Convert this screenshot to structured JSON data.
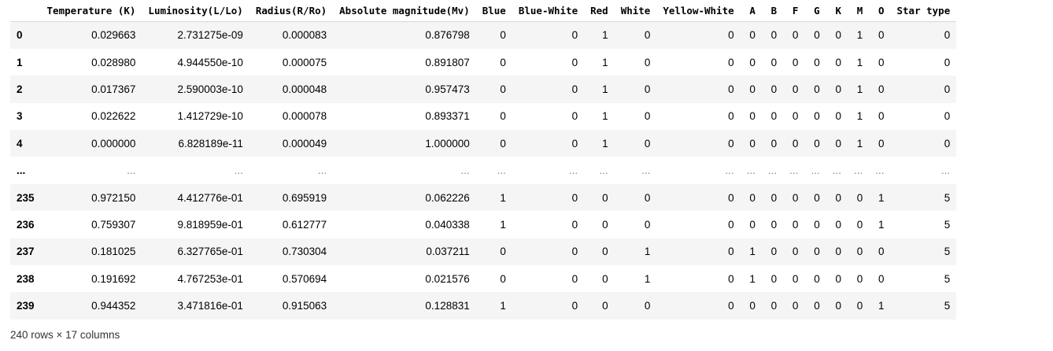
{
  "dataframe": {
    "columns": [
      "",
      "Temperature (K)",
      "Luminosity(L/Lo)",
      "Radius(R/Ro)",
      "Absolute magnitude(Mv)",
      "Blue",
      "Blue-White",
      "Red",
      "White",
      "Yellow-White",
      "A",
      "B",
      "F",
      "G",
      "K",
      "M",
      "O",
      "Star type"
    ],
    "rows": [
      [
        "0",
        "0.029663",
        "2.731275e-09",
        "0.000083",
        "0.876798",
        "0",
        "0",
        "1",
        "0",
        "0",
        "0",
        "0",
        "0",
        "0",
        "0",
        "1",
        "0",
        "0"
      ],
      [
        "1",
        "0.028980",
        "4.944550e-10",
        "0.000075",
        "0.891807",
        "0",
        "0",
        "1",
        "0",
        "0",
        "0",
        "0",
        "0",
        "0",
        "0",
        "1",
        "0",
        "0"
      ],
      [
        "2",
        "0.017367",
        "2.590003e-10",
        "0.000048",
        "0.957473",
        "0",
        "0",
        "1",
        "0",
        "0",
        "0",
        "0",
        "0",
        "0",
        "0",
        "1",
        "0",
        "0"
      ],
      [
        "3",
        "0.022622",
        "1.412729e-10",
        "0.000078",
        "0.893371",
        "0",
        "0",
        "1",
        "0",
        "0",
        "0",
        "0",
        "0",
        "0",
        "0",
        "1",
        "0",
        "0"
      ],
      [
        "4",
        "0.000000",
        "6.828189e-11",
        "0.000049",
        "1.000000",
        "0",
        "0",
        "1",
        "0",
        "0",
        "0",
        "0",
        "0",
        "0",
        "0",
        "1",
        "0",
        "0"
      ],
      [
        "...",
        "...",
        "...",
        "...",
        "...",
        "...",
        "...",
        "...",
        "...",
        "...",
        "...",
        "...",
        "...",
        "...",
        "...",
        "...",
        "...",
        "..."
      ],
      [
        "235",
        "0.972150",
        "4.412776e-01",
        "0.695919",
        "0.062226",
        "1",
        "0",
        "0",
        "0",
        "0",
        "0",
        "0",
        "0",
        "0",
        "0",
        "0",
        "1",
        "5"
      ],
      [
        "236",
        "0.759307",
        "9.818959e-01",
        "0.612777",
        "0.040338",
        "1",
        "0",
        "0",
        "0",
        "0",
        "0",
        "0",
        "0",
        "0",
        "0",
        "0",
        "1",
        "5"
      ],
      [
        "237",
        "0.181025",
        "6.327765e-01",
        "0.730304",
        "0.037211",
        "0",
        "0",
        "0",
        "1",
        "0",
        "1",
        "0",
        "0",
        "0",
        "0",
        "0",
        "0",
        "5"
      ],
      [
        "238",
        "0.191692",
        "4.767253e-01",
        "0.570694",
        "0.021576",
        "0",
        "0",
        "0",
        "1",
        "0",
        "1",
        "0",
        "0",
        "0",
        "0",
        "0",
        "0",
        "5"
      ],
      [
        "239",
        "0.944352",
        "3.471816e-01",
        "0.915063",
        "0.128831",
        "1",
        "0",
        "0",
        "0",
        "0",
        "0",
        "0",
        "0",
        "0",
        "0",
        "0",
        "1",
        "5"
      ]
    ],
    "shape_text": "240 rows × 17 columns"
  }
}
